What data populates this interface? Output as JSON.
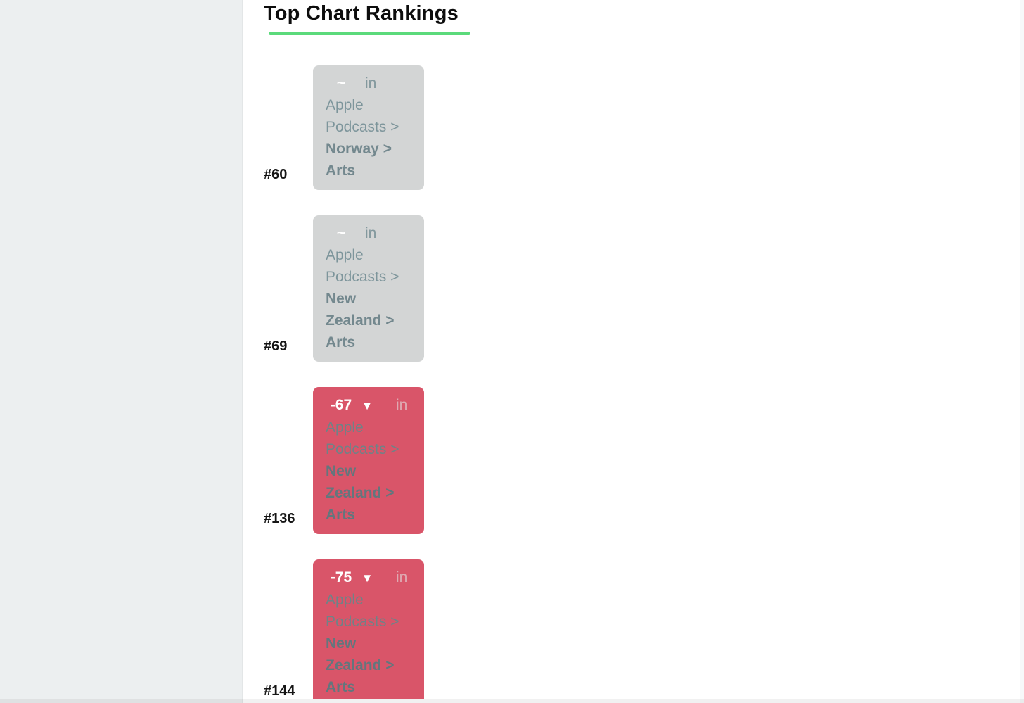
{
  "page": {
    "title": "Top Chart Rankings"
  },
  "colors": {
    "underline_green": "#5bda7b",
    "card_neutral_bg": "#d3d5d5",
    "card_down_bg": "#d95569",
    "change_text": "#ffffff",
    "sidebar_bg": "#eceff0"
  },
  "icons": {
    "down_triangle": "▼"
  },
  "rankings": [
    {
      "rank": "#60",
      "change": "~",
      "direction": "none",
      "connector": "in",
      "platform": "Apple Podcasts > ",
      "location": "Norway > Arts",
      "card_bg": "#d3d5d5"
    },
    {
      "rank": "#69",
      "change": "~",
      "direction": "none",
      "connector": "in",
      "platform": "Apple Podcasts > ",
      "location": "New Zealand > Arts",
      "card_bg": "#d3d5d5"
    },
    {
      "rank": "#136",
      "change": "-67",
      "direction": "down",
      "connector": "in",
      "platform": "Apple Podcasts > ",
      "location": "New Zealand > Arts",
      "card_bg": "#d95569"
    },
    {
      "rank": "#144",
      "change": "-75",
      "direction": "down",
      "connector": "in",
      "platform": "Apple Podcasts > ",
      "location": "New Zealand > Arts",
      "card_bg": "#d95569"
    }
  ]
}
